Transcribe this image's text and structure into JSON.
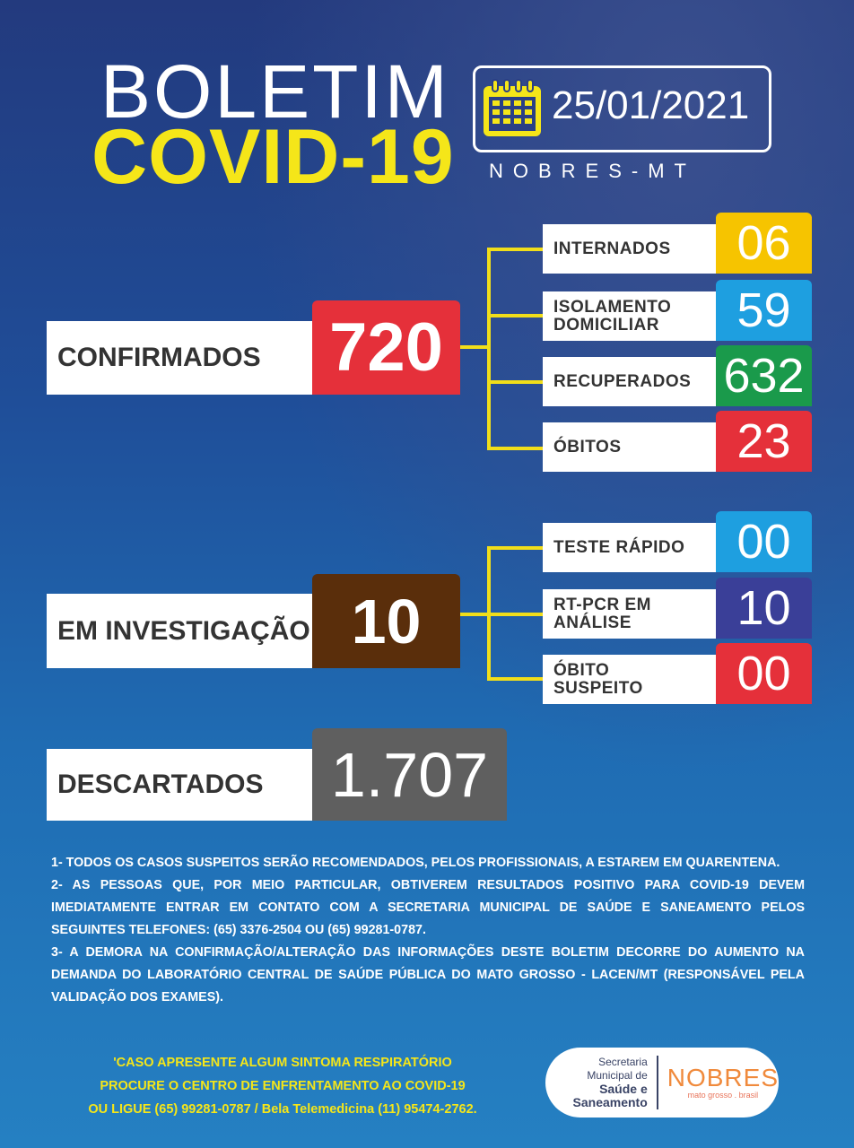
{
  "header": {
    "title_line1": "BOLETIM",
    "title_line2": "COVID-19",
    "date": "25/01/2021",
    "location": "NOBRES-MT"
  },
  "confirmados": {
    "label": "CONFIRMADOS",
    "value": "720",
    "color": "#e5303a",
    "items": [
      {
        "label": "INTERNADOS",
        "value": "06",
        "color": "#f6c400"
      },
      {
        "label": "ISOLAMENTO DOMICILIAR",
        "value": "59",
        "color": "#1e9fe0"
      },
      {
        "label": "RECUPERADOS",
        "value": "632",
        "color": "#1a9a4b"
      },
      {
        "label": "ÓBITOS",
        "value": "23",
        "color": "#e5303a"
      }
    ]
  },
  "investigacao": {
    "label": "EM INVESTIGAÇÃO",
    "value": "10",
    "color": "#5a2e0b",
    "items": [
      {
        "label": "TESTE RÁPIDO",
        "value": "00",
        "color": "#1e9fe0"
      },
      {
        "label": "RT-PCR EM ANÁLISE",
        "value": "10",
        "color": "#3a3f98"
      },
      {
        "label": "ÓBITO SUSPEITO",
        "value": "00",
        "color": "#e5303a"
      }
    ]
  },
  "descartados": {
    "label": "DESCARTADOS",
    "value": "1.707",
    "color": "#5f5f5f"
  },
  "notes": [
    "1- TODOS OS CASOS SUSPEITOS SERÃO RECOMENDADOS, PELOS PROFISSIONAIS, A ESTAREM EM QUARENTENA.",
    "2- AS PESSOAS QUE, POR MEIO PARTICULAR, OBTIVEREM RESULTADOS POSITIVO PARA COVID-19 DEVEM IMEDIATAMENTE ENTRAR EM CONTATO COM A SECRETARIA MUNICIPAL DE SAÚDE E SANEAMENTO PELOS SEGUINTES TELEFONES: (65) 3376-2504 OU (65) 99281-0787.",
    "3- A DEMORA NA CONFIRMAÇÃO/ALTERAÇÃO DAS INFORMAÇÕES DESTE BOLETIM DECORRE DO AUMENTO NA DEMANDA DO LABORATÓRIO CENTRAL DE SAÚDE PÚBLICA DO MATO GROSSO - LACEN/MT (RESPONSÁVEL PELA VALIDAÇÃO DOS EXAMES)."
  ],
  "footer": {
    "line1": "'CASO APRESENTE ALGUM SINTOMA RESPIRATÓRIO",
    "line2": "PROCURE O CENTRO DE ENFRENTAMENTO AO COVID-19",
    "line3": "OU LIGUE (65) 99281-0787 / Bela Telemedicina (11) 95474-2762."
  },
  "logo": {
    "sec1": "Secretaria",
    "sec2": "Municipal de",
    "sec3": "Saúde e",
    "sec4": "Saneamento",
    "brand": "NOBRES",
    "tagline": "mato grosso . brasil"
  },
  "colors": {
    "title_yellow": "#f5e619",
    "connector": "#f1de1a"
  }
}
